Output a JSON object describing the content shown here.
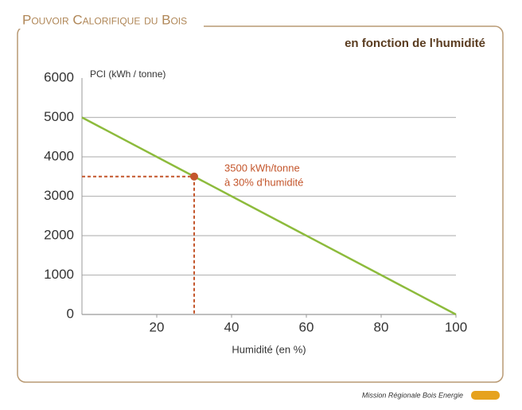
{
  "chart_data": {
    "type": "line",
    "title": "Pouvoir Calorifique du Bois",
    "subtitle": "en fonction de l'humidité",
    "ylabel": "PCI (kWh / tonne)",
    "xlabel": "Humidité (en %)",
    "footer": "Mission Régionale Bois Energie",
    "series": [
      {
        "x": [
          0,
          100
        ],
        "values": [
          5000,
          0
        ],
        "color": "#8dbb3c"
      }
    ],
    "xlim": [
      0,
      100
    ],
    "xticks": [
      20,
      40,
      60,
      80,
      100
    ],
    "ylim": [
      0,
      6000
    ],
    "yticks": [
      0,
      1000,
      2000,
      3000,
      4000,
      5000,
      6000
    ],
    "grid": true,
    "annotation": {
      "x": 30,
      "y": 3500,
      "color": "#c4562c",
      "text": [
        "3500 kWh/tonne",
        "à 30% d'humidité"
      ]
    }
  }
}
